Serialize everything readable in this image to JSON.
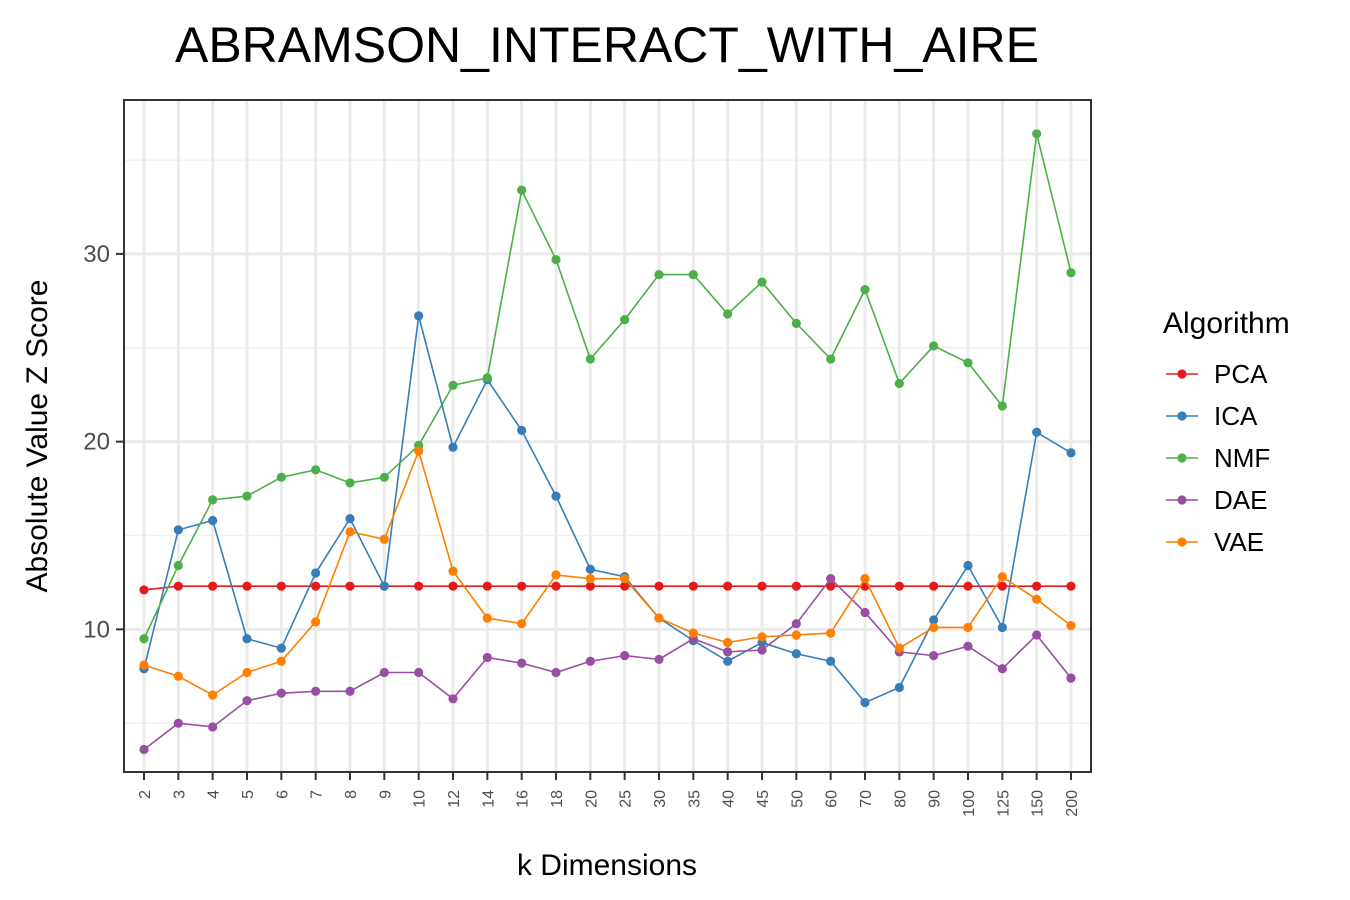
{
  "chart_data": {
    "type": "line",
    "title": "ABRAMSON_INTERACT_WITH_AIRE",
    "xlabel": "k Dimensions",
    "ylabel": "Absolute Value Z Score",
    "categories": [
      "2",
      "3",
      "4",
      "5",
      "6",
      "7",
      "8",
      "9",
      "10",
      "12",
      "14",
      "16",
      "18",
      "20",
      "25",
      "30",
      "35",
      "40",
      "45",
      "50",
      "60",
      "70",
      "80",
      "90",
      "100",
      "125",
      "150",
      "200"
    ],
    "y_ticks": [
      10,
      20,
      30
    ],
    "ylim": [
      2.4,
      38.2
    ],
    "grid": true,
    "legend": {
      "title": "Algorithm",
      "position": "right"
    },
    "series": [
      {
        "name": "PCA",
        "color": "#e41a1c",
        "values": [
          12.1,
          12.3,
          12.3,
          12.3,
          12.3,
          12.3,
          12.3,
          12.3,
          12.3,
          12.3,
          12.3,
          12.3,
          12.3,
          12.3,
          12.3,
          12.3,
          12.3,
          12.3,
          12.3,
          12.3,
          12.3,
          12.3,
          12.3,
          12.3,
          12.3,
          12.3,
          12.3,
          12.3
        ]
      },
      {
        "name": "ICA",
        "color": "#377eb8",
        "values": [
          7.9,
          15.3,
          15.8,
          9.5,
          9.0,
          13.0,
          15.9,
          12.3,
          26.7,
          19.7,
          23.3,
          20.6,
          17.1,
          13.2,
          12.8,
          10.6,
          9.4,
          8.3,
          9.3,
          8.7,
          8.3,
          6.1,
          6.9,
          10.5,
          13.4,
          10.1,
          20.5,
          19.4
        ]
      },
      {
        "name": "NMF",
        "color": "#4daf4a",
        "values": [
          9.5,
          13.4,
          16.9,
          17.1,
          18.1,
          18.5,
          17.8,
          18.1,
          19.8,
          23.0,
          23.4,
          33.4,
          29.7,
          24.4,
          26.5,
          28.9,
          28.9,
          26.8,
          28.5,
          26.3,
          24.4,
          28.1,
          23.1,
          25.1,
          24.2,
          21.9,
          36.4,
          29.0
        ]
      },
      {
        "name": "DAE",
        "color": "#984ea3",
        "values": [
          3.6,
          5.0,
          4.8,
          6.2,
          6.6,
          6.7,
          6.7,
          7.7,
          7.7,
          6.3,
          8.5,
          8.2,
          7.7,
          8.3,
          8.6,
          8.4,
          9.5,
          8.8,
          8.9,
          10.3,
          12.7,
          10.9,
          8.8,
          8.6,
          9.1,
          7.9,
          9.7,
          7.4
        ]
      },
      {
        "name": "VAE",
        "color": "#ff7f00",
        "values": [
          8.1,
          7.5,
          6.5,
          7.7,
          8.3,
          10.4,
          15.2,
          14.8,
          19.5,
          13.1,
          10.6,
          10.3,
          12.9,
          12.7,
          12.7,
          10.6,
          9.8,
          9.3,
          9.6,
          9.7,
          9.8,
          12.7,
          9.0,
          10.1,
          10.1,
          12.8,
          11.6,
          10.2
        ]
      }
    ]
  }
}
